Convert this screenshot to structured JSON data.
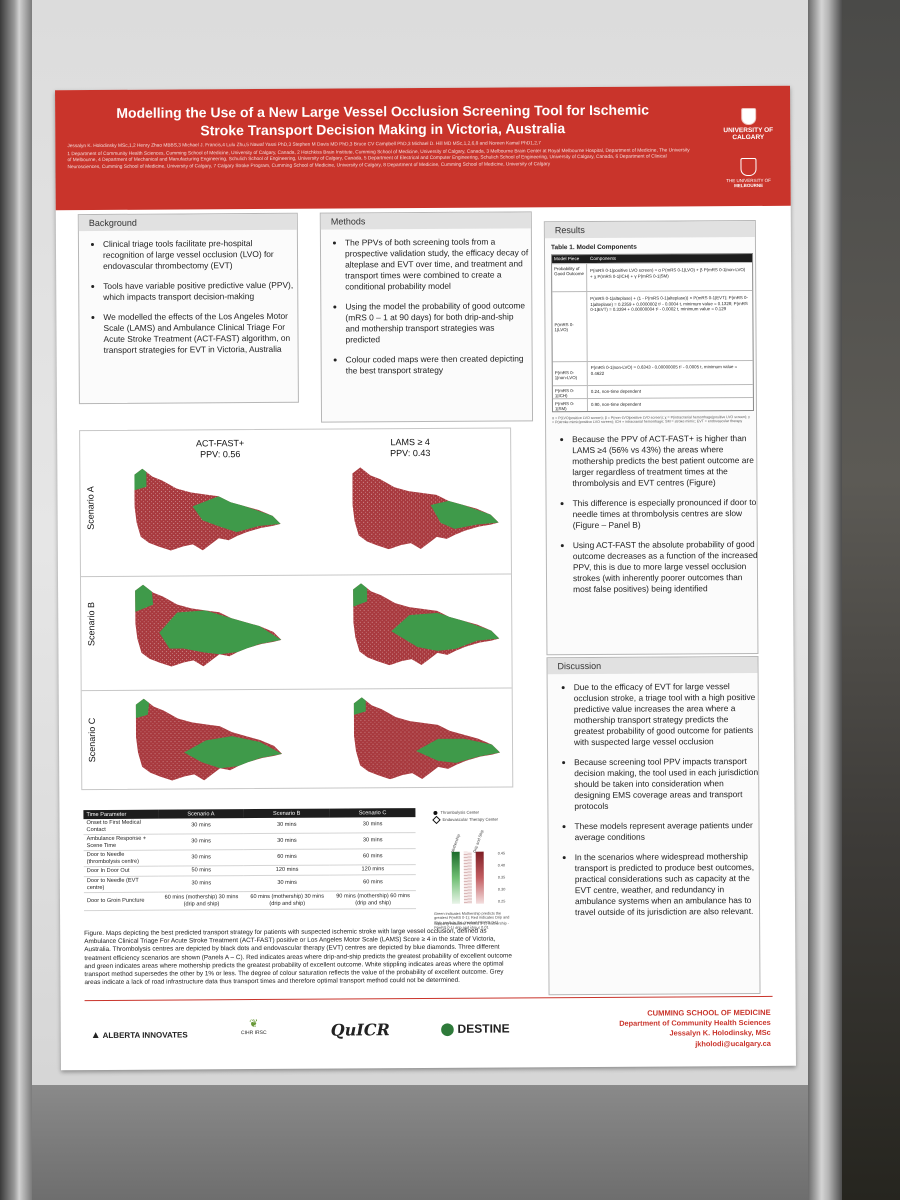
{
  "poster": {
    "title_line1": "Modelling the Use of a New Large Vessel Occlusion Screening Tool for Ischemic",
    "title_line2": "Stroke Transport Decision Making in Victoria, Australia",
    "authors": "Jessalyn K. Holodinsky MSc,1,2 Henry Zhao MBBS,3 Michael J. Francis,4 Lulu Zhu,5 Nawaf Yassi PhD,3 Stephen M Davis MD PhD,3 Bruce CV Campbell PhD,3 Michael D. Hill MD MSc,1,2,6,8 and Noreen Kamal PhD1,2,7",
    "affiliations": "1 Department of Community Health Sciences, Cumming School of Medicine, University of Calgary, Canada, 2 Hotchkiss Brain Institute, Cumming School of Medicine, University of Calgary, Canada, 3 Melbourne Brain Center at Royal Melbourne Hospital, Department of Medicine, The University of Melbourne, 4 Department of Mechanical and Manufacturing Engineering, Schulich School of Engineering, University of Calgary, Canada, 5 Department of Electrical and Computer Engineering, Schulich School of Engineering, University of Calgary, Canada, 6 Department of Clinical Neurosciences, Cumming School of Medicine, University of Calgary, 7 Calgary Stroke Program, Cumming School of Medicine, University of Calgary, 8 Department of Medicine, Cumming School of Medicine, University of Calgary",
    "logo_uc_line1": "UNIVERSITY OF",
    "logo_uc_line2": "CALGARY",
    "logo_um_line1": "THE UNIVERSITY OF",
    "logo_um_line2": "MELBOURNE"
  },
  "background": {
    "heading": "Background",
    "bullets": [
      "Clinical triage tools facilitate pre-hospital recognition of large vessel occlusion (LVO) for endovascular thrombectomy (EVT)",
      "Tools have variable positive predictive value (PPV), which impacts transport decision-making",
      "We modelled the effects of the Los Angeles Motor Scale (LAMS) and Ambulance Clinical Triage For Acute Stroke Treatment (ACT-FAST) algorithm, on transport strategies for EVT in Victoria, Australia"
    ]
  },
  "methods": {
    "heading": "Methods",
    "bullets": [
      "The PPVs of both screening tools from a prospective validation study, the efficacy decay of alteplase and EVT over time, and treatment and transport times were combined to create a conditional probability model",
      "Using the model the probability of good outcome (mRS 0 – 1 at 90 days) for both drip-and-ship and mothership transport strategies was predicted",
      "Colour coded maps were then created depicting the best transport strategy"
    ]
  },
  "maps": {
    "col1_line1": "ACT-FAST+",
    "col1_line2": "PPV: 0.56",
    "col2_line1": "LAMS ≥ 4",
    "col2_line2": "PPV: 0.43",
    "rows": [
      "Scenario A",
      "Scenario B",
      "Scenario C"
    ],
    "colors": {
      "drip_and_ship": "#a8393e",
      "mothership": "#3f9a4a",
      "stipple": "#f2dada"
    }
  },
  "time_table": {
    "headers": [
      "Time Parameter",
      "Scenario A",
      "Scenario B",
      "Scenario C"
    ],
    "rows": [
      [
        "Onset to First Medical Contact",
        "30 mins",
        "30 mins",
        "30 mins"
      ],
      [
        "Ambulance Response + Scene Time",
        "30 mins",
        "30 mins",
        "30 mins"
      ],
      [
        "Door to Needle (thrombolysis centre)",
        "30 mins",
        "60 mins",
        "60 mins"
      ],
      [
        "Door In Door Out",
        "50 mins",
        "120 mins",
        "120 mins"
      ],
      [
        "Door to Needle (EVT centre)",
        "30 mins",
        "30 mins",
        "60 mins"
      ],
      [
        "Door to Groin Puncture",
        "60 mins (mothership) 30 mins (drip and ship)",
        "60 mins (mothership) 30 mins (drip and ship)",
        "90 mins (mothership) 60 mins (drip and ship)"
      ]
    ]
  },
  "legend": {
    "item1": "Thrombolysis Center",
    "item2": "Endovascular Therapy Center",
    "bar1": "Mothership",
    "bar2": "Drip and Ship",
    "scale": [
      "0.45",
      "0.40",
      "0.35",
      "0.30",
      "0.25"
    ],
    "note1": "Green indicates Mothership predicts the greatest P(mRS 0-1); Red indicates Drip and Ship predicts the greatest P(mRS 0-1)",
    "note2": "Stippling indicates: P(mRS 0-1) mothership - P(mRS 0-1) drip and ship ≤ 0.01"
  },
  "figure_caption": "Figure. Maps depicting the best predicted transport strategy for patients with suspected ischemic stroke with large vessel occlusion, defined as Ambulance Clinical Triage For Acute Stroke Treatment (ACT-FAST) positive or Los Angeles Motor Scale (LAMS) Score ≥ 4 in the state of Victoria, Australia. Thrombolysis centres are depicted by black dots and endovascular therapy (EVT) centres are depicted by blue diamonds. Three different treatment efficiency scenarios are shown (Panels A – C). Red indicates areas where drip-and-ship predicts the greatest probability of excellent outcome and green indicates areas where mothership predicts the greatest probability of excellent outcome. White stippling indicates areas where the optimal transport method supersedes the other by 1% or less. The degree of colour saturation reflects the value of the probability of excellent outcome. Grey areas indicate a lack of road infrastructure data thus transport times and therefore optimal transport method could not be determined.",
  "results": {
    "heading": "Results",
    "table_title": "Table 1. Model Components",
    "table_head": [
      "Model Piece",
      "Components"
    ],
    "table_rows": [
      {
        "label": "Probability of Good Outcome",
        "value": "P(mRS 0-1|positive LVO screen) = α P(mRS 0-1|LVO) + β P(mRS 0-1|non-LVO) + χ P(mRS 0-1|ICH) + γ P(mRS 0-1|SM)"
      },
      {
        "label": "P(mRS 0-1|LVO)",
        "value": "P(mRS 0-1|alteplase) + (1 - P(mRS 0-1|alteplase)) × P(mRS 0-1|EVT); P(mRS 0-1|alteplase) = 0.2359 + 0.0000002 t² - 0.0004 t, minimum value = 0.1328; P(mRS 0-1|EVT) = 0.3394 + 0.00000004 t² - 0.0002 t, minimum value = 0.129"
      },
      {
        "label": "P(mRS 0-1|non-LVO)",
        "value": "P(mRS 0-1|non-LVO) = 0.6343 - 0.00000005 t² - 0.0005 t, minimum value = 0.4622"
      },
      {
        "label": "P(mRS 0-1|ICH)",
        "value": "0.24, non-time dependent"
      },
      {
        "label": "P(mRS 0-1|SM)",
        "value": "0.90, non-time dependent"
      }
    ],
    "table_note": "α = P(LVO|positive LVO screen); β = P(non-LVO|positive LVO screen); χ = P(intracranial hemorrhage|positive LVO screen); γ = P(stroke mimic|positive LVO screen); ICH = intracranial hemorrhage; SM = stroke mimic; EVT = endovascular therapy",
    "bullets": [
      "Because the PPV of ACT-FAST+ is higher than LAMS ≥4 (56% vs 43%) the areas where mothership predicts the best patient outcome are larger regardless of treatment times at the thrombolysis and EVT centres (Figure)",
      "This difference is especially pronounced if door to needle times at thrombolysis centres are slow (Figure – Panel B)",
      "Using ACT-FAST the absolute probability of good outcome decreases as a function of the increased PPV, this is due to more large vessel occlusion strokes (with inherently poorer outcomes than most false positives) being identified"
    ]
  },
  "discussion": {
    "heading": "Discussion",
    "bullets": [
      "Due to the efficacy of EVT for large vessel occlusion stroke, a triage tool with a high positive predictive value increases the area where a mothership transport strategy predicts the greatest probability of good outcome for patients with suspected large vessel occlusion",
      "Because screening tool PPV impacts transport decision making, the tool used in each jurisdiction should be taken into consideration when designing EMS coverage areas and transport protocols",
      "These models represent average patients under average conditions",
      "In the scenarios where widespread mothership transport is predicted to produce best outcomes, practical considerations such as capacity at the EVT centre, weather, and redundancy in ambulance systems when an ambulance has to travel outside of its jurisdiction are also relevant."
    ]
  },
  "footer": {
    "logo1": "ALBERTA INNOVATES",
    "logo2": "CIHR IRSC",
    "logo3": "QuICR",
    "logo4": "DESTINE",
    "school": "CUMMING SCHOOL OF MEDICINE",
    "dept": "Department of Community Health Sciences",
    "name": "Jessalyn K. Holodinsky, MSc",
    "email": "jkholodi@ucalgary.ca"
  }
}
